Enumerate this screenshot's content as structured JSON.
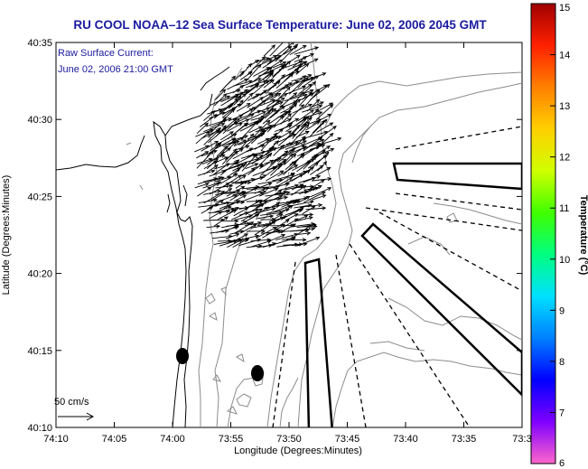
{
  "title": "RU COOL  NOAA–12  Sea Surface Temperature:  June 02, 2006 2045 GMT",
  "annotation": {
    "line1": "Raw Surface Current:",
    "line2": "June 02, 2006 21:00 GMT"
  },
  "scale": {
    "label": "50 cm/s"
  },
  "axes": {
    "xlabel": "Longitude (Degrees:Minutes)",
    "ylabel": "Latitude (Degrees:Minutes)",
    "x_ticks": [
      "74:10",
      "74:05",
      "74:00",
      "73:55",
      "73:50",
      "73:45",
      "73:40",
      "73:35",
      "73:3"
    ],
    "y_ticks": [
      "40:35",
      "40:30",
      "40:25",
      "40:20",
      "40:15",
      "40:10"
    ]
  },
  "colorbar": {
    "label": "Temperature (°C)",
    "ticks": [
      "15",
      "14",
      "13",
      "12",
      "11",
      "10",
      "9",
      "8",
      "7",
      "6"
    ],
    "range": [
      6,
      15
    ],
    "colors": [
      "#ff66cc",
      "#8000ff",
      "#0000ff",
      "#0080ff",
      "#00e0ff",
      "#00ff80",
      "#40ff00",
      "#d0ff00",
      "#ffd000",
      "#ff8000",
      "#ff2000",
      "#a00000"
    ]
  }
}
